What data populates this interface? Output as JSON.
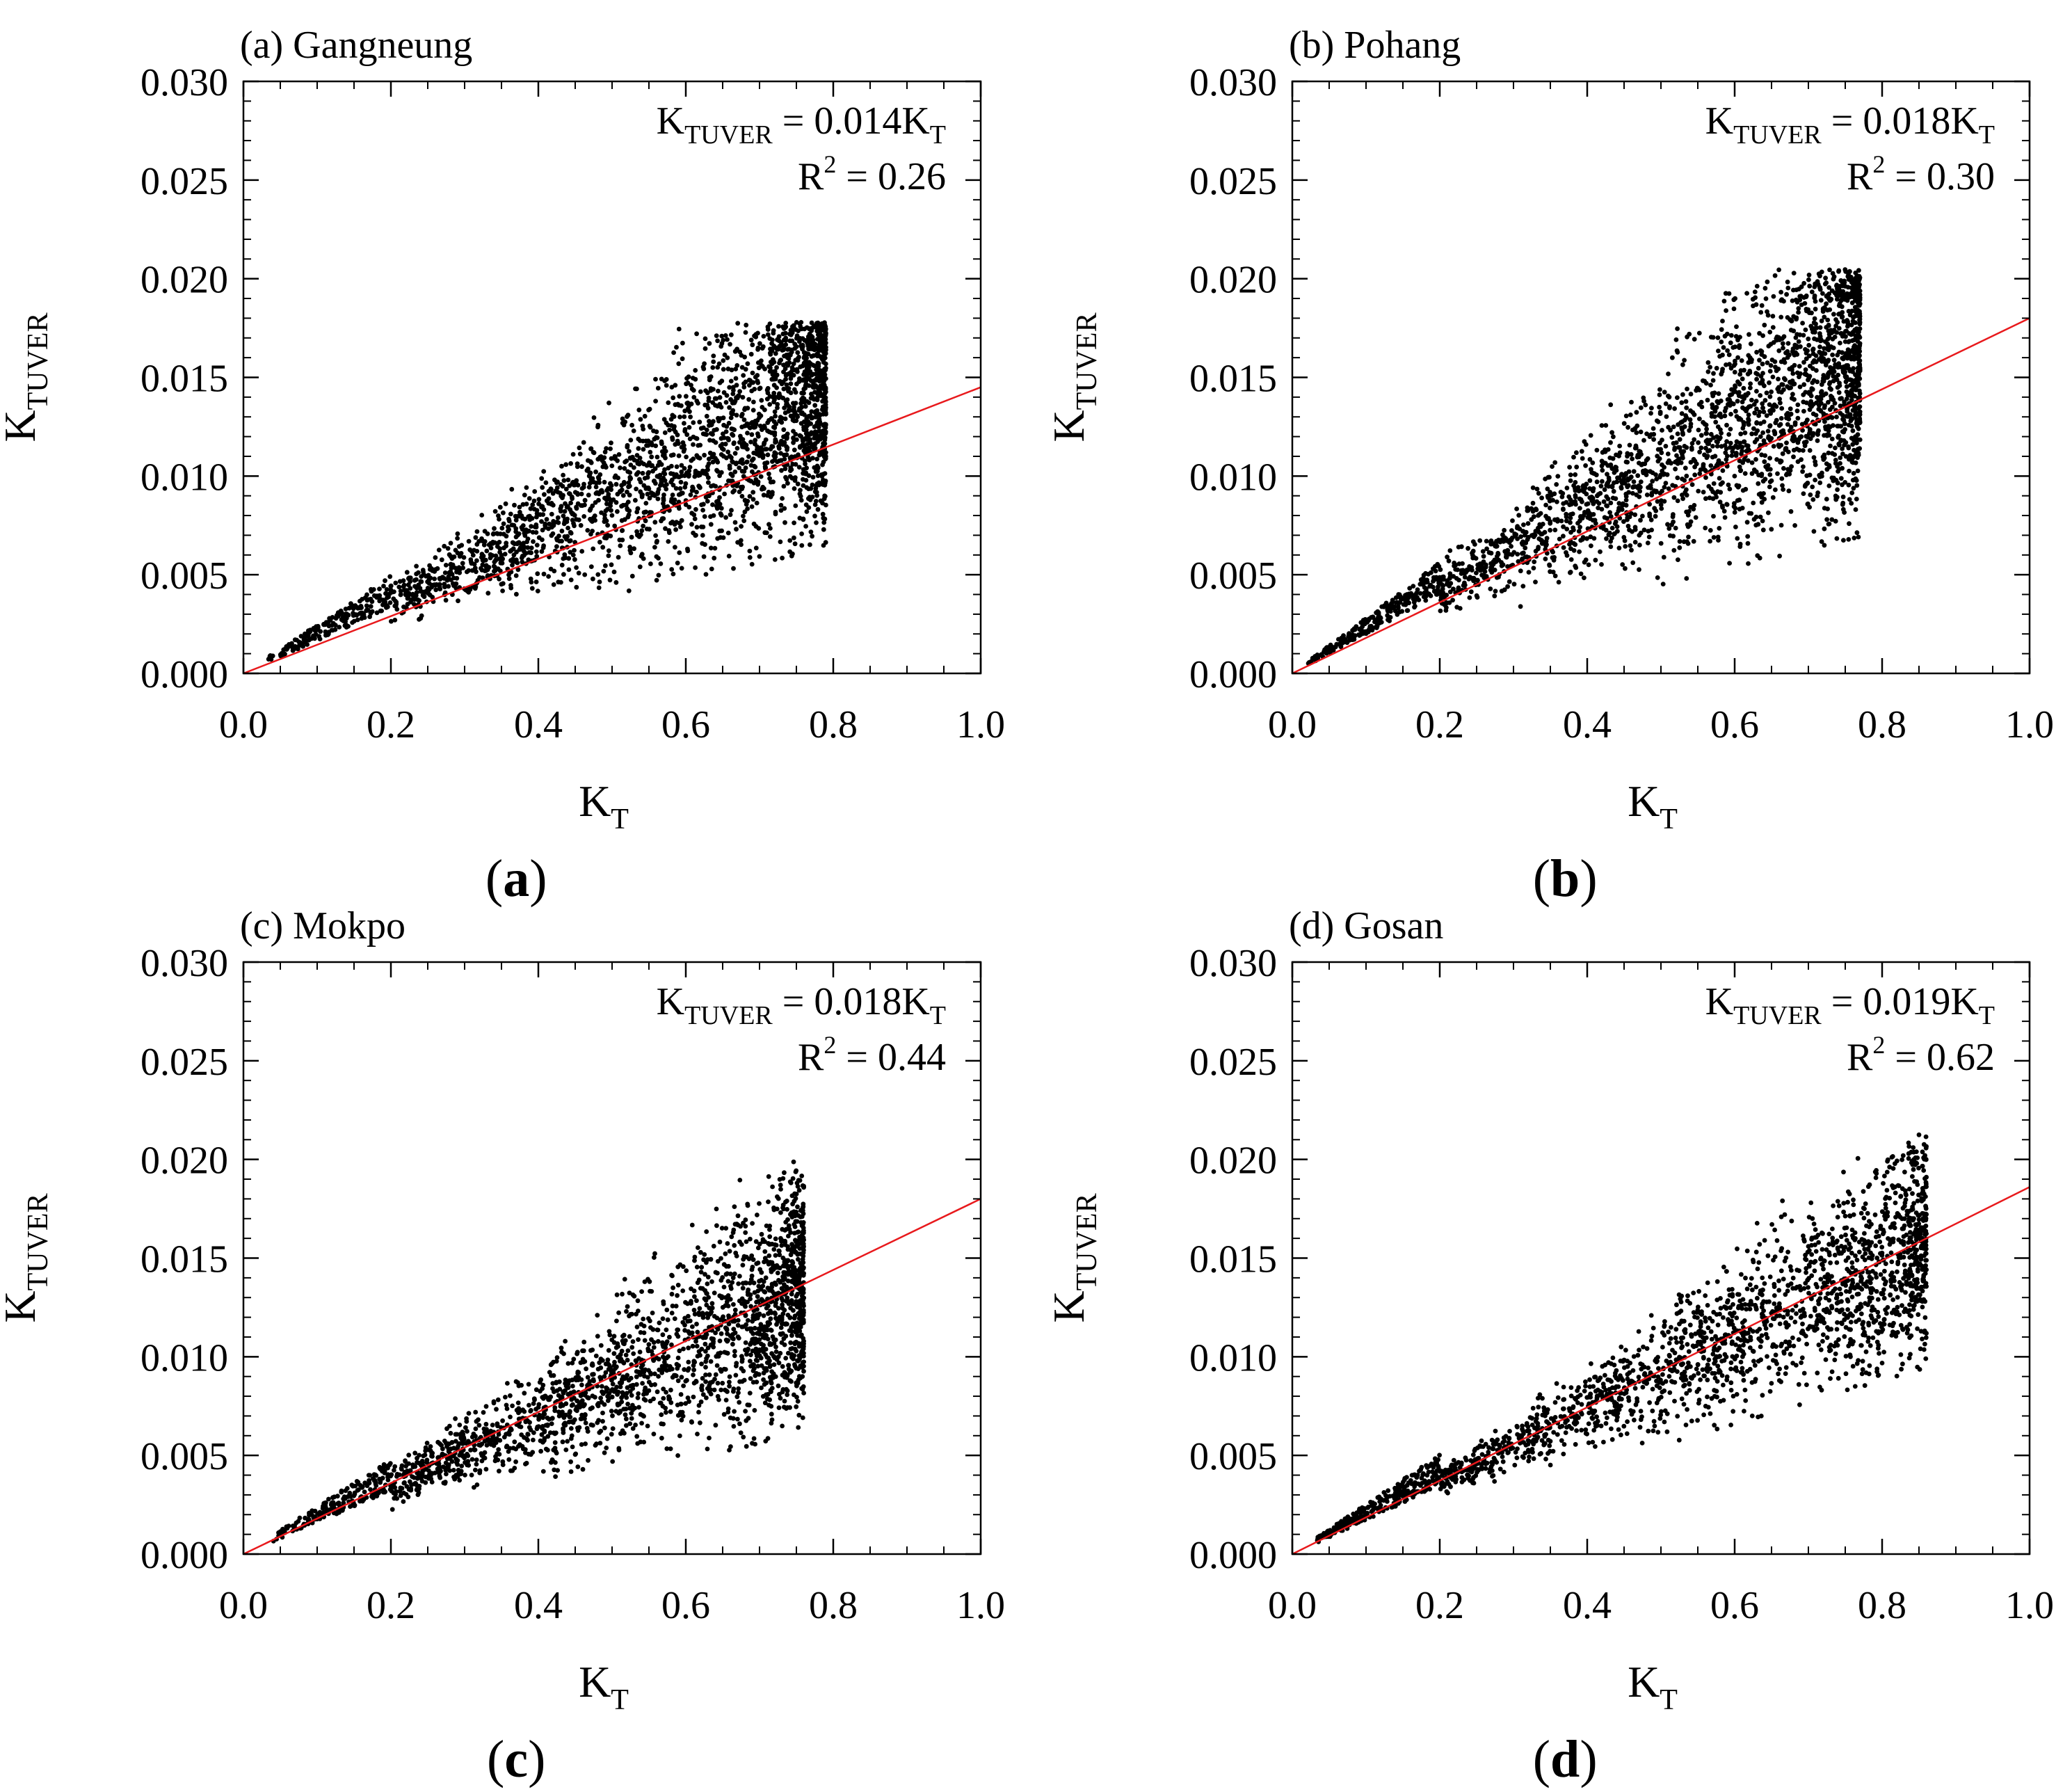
{
  "figure": {
    "accent_color": "#e8191c",
    "point_color": "#000000",
    "panels": [
      {
        "id": "a",
        "title": "(a) Gangneung",
        "caption_open": "(",
        "caption_letter": "a",
        "caption_close": ")",
        "equation": {
          "lhs_main": "K",
          "lhs_sub": "TUVER",
          "rhs_main": " = 0.014K",
          "rhs_sub": "T"
        },
        "r2": {
          "main": "R",
          "sup": "2",
          "value": " = 0.26"
        }
      },
      {
        "id": "b",
        "title": "(b) Pohang",
        "caption_open": "(",
        "caption_letter": "b",
        "caption_close": ")",
        "equation": {
          "lhs_main": "K",
          "lhs_sub": "TUVER",
          "rhs_main": " = 0.018K",
          "rhs_sub": "T"
        },
        "r2": {
          "main": "R",
          "sup": "2",
          "value": " = 0.30"
        }
      },
      {
        "id": "c",
        "title": "(c) Mokpo",
        "caption_open": "(",
        "caption_letter": "c",
        "caption_close": ")",
        "equation": {
          "lhs_main": "K",
          "lhs_sub": "TUVER",
          "rhs_main": " = 0.018K",
          "rhs_sub": "T"
        },
        "r2": {
          "main": "R",
          "sup": "2",
          "value": " = 0.44"
        }
      },
      {
        "id": "d",
        "title": "(d) Gosan",
        "caption_open": "(",
        "caption_letter": "d",
        "caption_close": ")",
        "equation": {
          "lhs_main": "K",
          "lhs_sub": "TUVER",
          "rhs_main": " = 0.019K",
          "rhs_sub": "T"
        },
        "r2": {
          "main": "R",
          "sup": "2",
          "value": " = 0.62"
        }
      }
    ]
  },
  "chart_data": [
    {
      "type": "scatter",
      "title": "(a) Gangneung",
      "xlabel": "K_T",
      "xlabel_main": "K",
      "xlabel_sub": "T",
      "ylabel": "K_TUVER",
      "ylabel_main": "K",
      "ylabel_sub": "TUVER",
      "xlim": [
        0.0,
        1.0
      ],
      "ylim": [
        0.0,
        0.03
      ],
      "xticks": [
        "0.0",
        "0.2",
        "0.4",
        "0.6",
        "0.8",
        "1.0"
      ],
      "yticks": [
        "0.000",
        "0.005",
        "0.010",
        "0.015",
        "0.020",
        "0.025",
        "0.030"
      ],
      "fit": {
        "slope": 0.0145,
        "r2": 0.26,
        "label": "K_TUVER = 0.014K_T"
      },
      "points_cloud": {
        "count": 2600,
        "x_range": [
          0.03,
          0.79
        ],
        "mean_ratio": 0.018,
        "ratio_low": 0.008,
        "ratio_high": 0.034,
        "low_floor": 0.004,
        "upper_cap": 0.0178,
        "x_skew": 0.75
      }
    },
    {
      "type": "scatter",
      "title": "(b) Pohang",
      "xlabel": "K_T",
      "xlabel_main": "K",
      "xlabel_sub": "T",
      "ylabel": "K_TUVER",
      "ylabel_main": "K",
      "ylabel_sub": "TUVER",
      "xlim": [
        0.0,
        1.0
      ],
      "ylim": [
        0.0,
        0.03
      ],
      "xticks": [
        "0.0",
        "0.2",
        "0.4",
        "0.6",
        "0.8",
        "1.0"
      ],
      "yticks": [
        "0.000",
        "0.005",
        "0.010",
        "0.015",
        "0.020",
        "0.025",
        "0.030"
      ],
      "fit": {
        "slope": 0.018,
        "r2": 0.3,
        "label": "K_TUVER = 0.018K_T"
      },
      "points_cloud": {
        "count": 2600,
        "x_range": [
          0.02,
          0.77
        ],
        "mean_ratio": 0.021,
        "ratio_low": 0.009,
        "ratio_high": 0.04,
        "low_floor": 0.0035,
        "upper_cap": 0.0205,
        "x_skew": 0.8
      }
    },
    {
      "type": "scatter",
      "title": "(c) Mokpo",
      "xlabel": "K_T",
      "xlabel_main": "K",
      "xlabel_sub": "T",
      "ylabel": "K_TUVER",
      "ylabel_main": "K",
      "ylabel_sub": "TUVER",
      "xlim": [
        0.0,
        1.0
      ],
      "ylim": [
        0.0,
        0.03
      ],
      "xticks": [
        "0.0",
        "0.2",
        "0.4",
        "0.6",
        "0.8",
        "1.0"
      ],
      "yticks": [
        "0.000",
        "0.005",
        "0.010",
        "0.015",
        "0.020",
        "0.025",
        "0.030"
      ],
      "fit": {
        "slope": 0.018,
        "r2": 0.44,
        "label": "K_TUVER = 0.018K_T"
      },
      "points_cloud": {
        "count": 2300,
        "x_range": [
          0.04,
          0.76
        ],
        "mean_ratio": 0.0175,
        "ratio_low": 0.008,
        "ratio_high": 0.032,
        "low_floor": 0.0038,
        "upper_cap": 0.0202,
        "x_skew": 0.8
      }
    },
    {
      "type": "scatter",
      "title": "(d) Gosan",
      "xlabel": "K_T",
      "xlabel_main": "K",
      "xlabel_sub": "T",
      "ylabel": "K_TUVER",
      "ylabel_main": "K",
      "ylabel_sub": "TUVER",
      "xlim": [
        0.0,
        1.0
      ],
      "ylim": [
        0.0,
        0.03
      ],
      "xticks": [
        "0.0",
        "0.2",
        "0.4",
        "0.6",
        "0.8",
        "1.0"
      ],
      "yticks": [
        "0.000",
        "0.005",
        "0.010",
        "0.015",
        "0.020",
        "0.025",
        "0.030"
      ],
      "fit": {
        "slope": 0.0186,
        "r2": 0.62,
        "label": "K_TUVER = 0.019K_T"
      },
      "points_cloud": {
        "count": 2200,
        "x_range": [
          0.03,
          0.86
        ],
        "mean_ratio": 0.0185,
        "ratio_low": 0.011,
        "ratio_high": 0.03,
        "low_floor": 0.002,
        "upper_cap": 0.0214,
        "x_skew": 0.95
      }
    }
  ]
}
